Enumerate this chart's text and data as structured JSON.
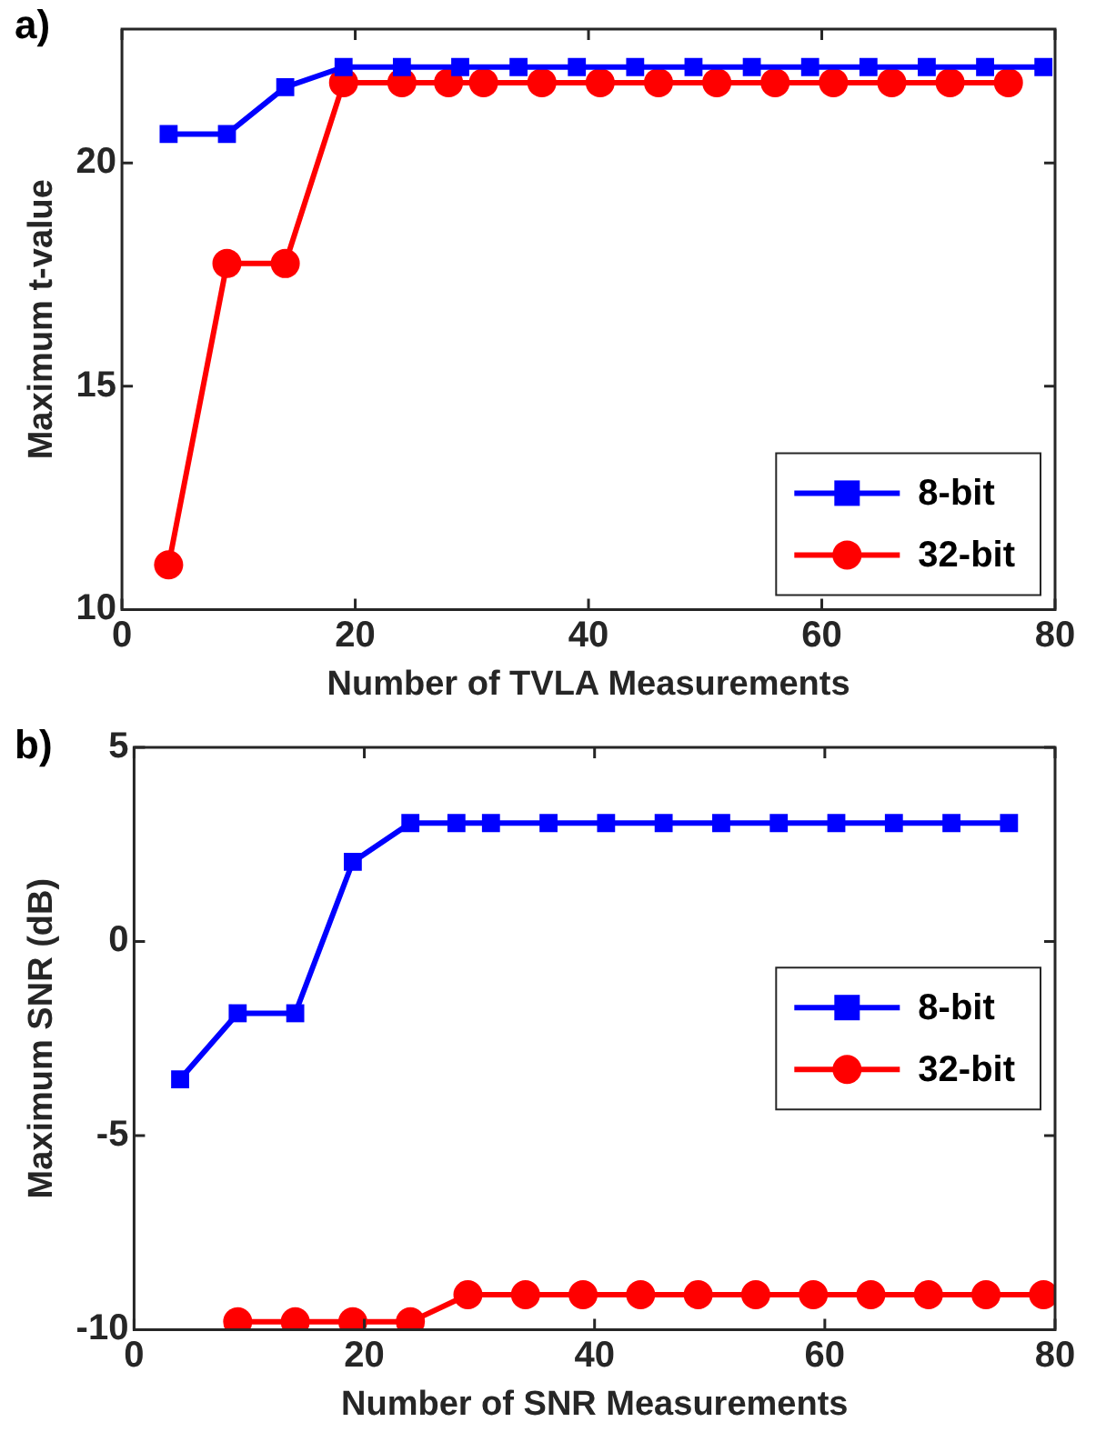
{
  "chart_data": [
    {
      "type": "line",
      "title": "a)",
      "xlabel": "Number of TVLA Measurements",
      "ylabel": "Maximum t-value",
      "xlim": [
        0,
        80
      ],
      "xticks": [
        0,
        20,
        40,
        60,
        80
      ],
      "ylim": [
        10,
        23
      ],
      "yticks": [
        10,
        15,
        20
      ],
      "grid": false,
      "legend": "bottom right",
      "series": [
        {
          "name": "8-bit",
          "color": "#0000ff",
          "marker": "square",
          "x": [
            4,
            9,
            14,
            19,
            24,
            29,
            34,
            39,
            44,
            49,
            54,
            59,
            64,
            69,
            74,
            79
          ],
          "values": [
            20.65,
            20.65,
            21.7,
            22.15,
            22.15,
            22.15,
            22.15,
            22.15,
            22.15,
            22.15,
            22.15,
            22.15,
            22.15,
            22.15,
            22.15,
            22.15
          ]
        },
        {
          "name": "32-bit",
          "color": "#ff0000",
          "marker": "circle",
          "x": [
            4,
            9,
            14,
            19,
            24,
            28,
            31,
            36,
            41,
            46,
            51,
            56,
            61,
            66,
            71,
            76
          ],
          "values": [
            11.0,
            17.75,
            17.75,
            21.8,
            21.8,
            21.8,
            21.8,
            21.8,
            21.8,
            21.8,
            21.8,
            21.8,
            21.8,
            21.8,
            21.8,
            21.8
          ]
        }
      ]
    },
    {
      "type": "line",
      "title": "b)",
      "xlabel": "Number of SNR Measurements",
      "ylabel": "Maximum SNR (dB)",
      "xlim": [
        0,
        80
      ],
      "xticks": [
        0,
        20,
        40,
        60,
        80
      ],
      "ylim": [
        -10,
        5
      ],
      "yticks": [
        -10,
        -5,
        0,
        5
      ],
      "grid": false,
      "legend": "right",
      "series": [
        {
          "name": "8-bit",
          "color": "#0000ff",
          "marker": "square",
          "x": [
            4,
            9,
            14,
            19,
            24,
            28,
            31,
            36,
            41,
            46,
            51,
            56,
            61,
            66,
            71,
            76
          ],
          "values": [
            -3.55,
            -1.85,
            -1.85,
            2.05,
            3.05,
            3.05,
            3.05,
            3.05,
            3.05,
            3.05,
            3.05,
            3.05,
            3.05,
            3.05,
            3.05,
            3.05
          ]
        },
        {
          "name": "32-bit",
          "color": "#ff0000",
          "marker": "circle",
          "x": [
            9,
            14,
            19,
            24,
            29,
            34,
            39,
            44,
            49,
            54,
            59,
            64,
            69,
            74,
            79
          ],
          "values": [
            -9.8,
            -9.8,
            -9.8,
            -9.8,
            -9.1,
            -9.1,
            -9.1,
            -9.1,
            -9.1,
            -9.1,
            -9.1,
            -9.1,
            -9.1,
            -9.1,
            -9.1
          ]
        }
      ]
    }
  ]
}
